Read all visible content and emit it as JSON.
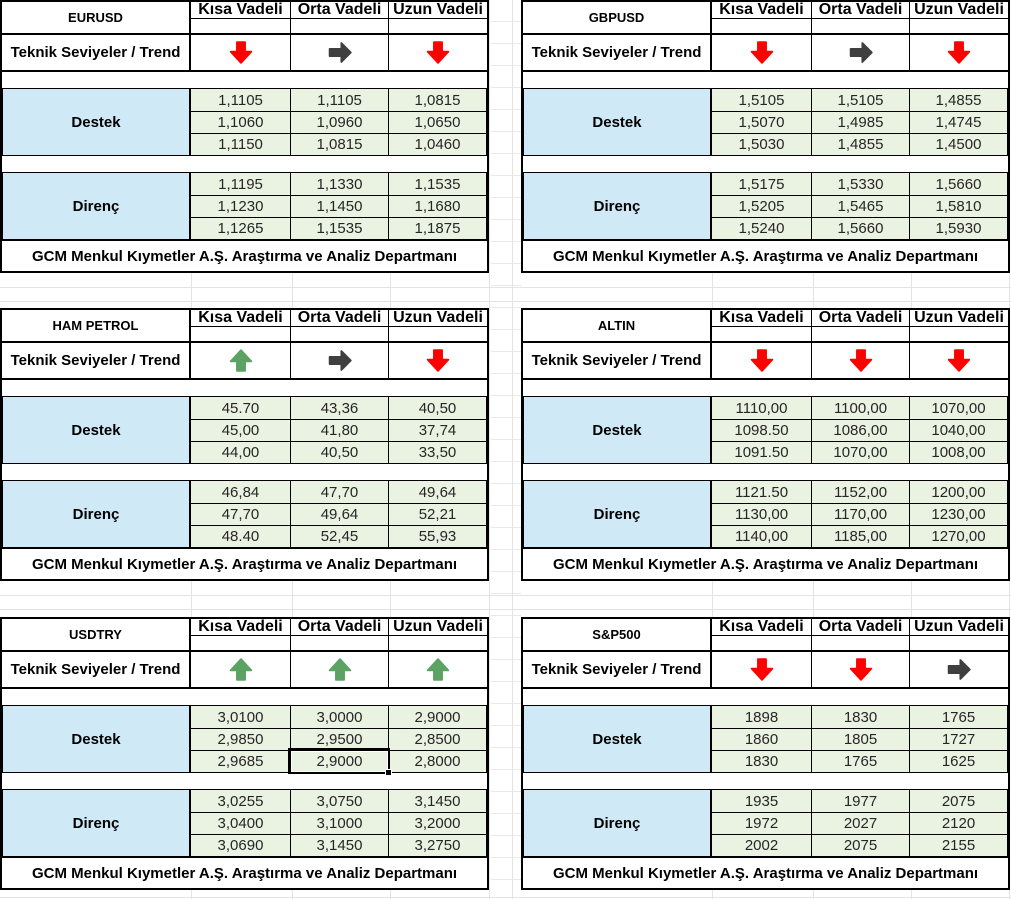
{
  "labels": {
    "columns": [
      "Kısa Vadeli",
      "Orta Vadeli",
      "Uzun Vadeli"
    ],
    "trend_row": "Teknik Seviyeler / Trend",
    "support": "Destek",
    "resistance": "Direnç",
    "footer": "GCM Menkul Kıymetler A.Ş. Araştırma ve Analiz Departmanı"
  },
  "colors": {
    "trend_up": "#5BA263",
    "trend_down": "#FE0000",
    "trend_flat": "#3F3F3F",
    "label_fill": "#CFE9F7",
    "value_fill": "#EAF2E2",
    "table_border": "#000000"
  },
  "tables": [
    {
      "name": "EURUSD",
      "trends": [
        "down",
        "flat",
        "down"
      ],
      "support": [
        [
          "1,1105",
          "1,1105",
          "1,0815"
        ],
        [
          "1,1060",
          "1,0960",
          "1,0650"
        ],
        [
          "1,1150",
          "1,0815",
          "1,0460"
        ]
      ],
      "resistance": [
        [
          "1,1195",
          "1,1330",
          "1,1535"
        ],
        [
          "1,1230",
          "1,1450",
          "1,1680"
        ],
        [
          "1,1265",
          "1,1535",
          "1,1875"
        ]
      ]
    },
    {
      "name": "GBPUSD",
      "trends": [
        "down",
        "flat",
        "down"
      ],
      "support": [
        [
          "1,5105",
          "1,5105",
          "1,4855"
        ],
        [
          "1,5070",
          "1,4985",
          "1,4745"
        ],
        [
          "1,5030",
          "1,4855",
          "1,4500"
        ]
      ],
      "resistance": [
        [
          "1,5175",
          "1,5330",
          "1,5660"
        ],
        [
          "1,5205",
          "1,5465",
          "1,5810"
        ],
        [
          "1,5240",
          "1,5660",
          "1,5930"
        ]
      ]
    },
    {
      "name": "HAM PETROL",
      "trends": [
        "up",
        "flat",
        "down"
      ],
      "support": [
        [
          "45.70",
          "43,36",
          "40,50"
        ],
        [
          "45,00",
          "41,80",
          "37,74"
        ],
        [
          "44,00",
          "40,50",
          "33,50"
        ]
      ],
      "resistance": [
        [
          "46,84",
          "47,70",
          "49,64"
        ],
        [
          "47,70",
          "49,64",
          "52,21"
        ],
        [
          "48.40",
          "52,45",
          "55,93"
        ]
      ]
    },
    {
      "name": "ALTIN",
      "trends": [
        "down",
        "down",
        "down"
      ],
      "support": [
        [
          "1110,00",
          "1100,00",
          "1070,00"
        ],
        [
          "1098.50",
          "1086,00",
          "1040,00"
        ],
        [
          "1091.50",
          "1070,00",
          "1008,00"
        ]
      ],
      "resistance": [
        [
          "1121.50",
          "1152,00",
          "1200,00"
        ],
        [
          "1130,00",
          "1170,00",
          "1230,00"
        ],
        [
          "1140,00",
          "1185,00",
          "1270,00"
        ]
      ]
    },
    {
      "name": "USDTRY",
      "trends": [
        "up",
        "up",
        "up"
      ],
      "support": [
        [
          "3,0100",
          "3,0000",
          "2,9000"
        ],
        [
          "2,9850",
          "2,9500",
          "2,8500"
        ],
        [
          "2,9685",
          "2,9000",
          "2,8000"
        ]
      ],
      "resistance": [
        [
          "3,0255",
          "3,0750",
          "3,1450"
        ],
        [
          "3,0400",
          "3,1000",
          "3,2000"
        ],
        [
          "3,0690",
          "3,1450",
          "3,2750"
        ]
      ]
    },
    {
      "name": "S&P500",
      "trends": [
        "down",
        "down",
        "flat"
      ],
      "support": [
        [
          "1898",
          "1830",
          "1765"
        ],
        [
          "1860",
          "1805",
          "1727"
        ],
        [
          "1830",
          "1765",
          "1625"
        ]
      ],
      "resistance": [
        [
          "1935",
          "1977",
          "2075"
        ],
        [
          "1972",
          "2027",
          "2120"
        ],
        [
          "2002",
          "2075",
          "2155"
        ]
      ]
    }
  ],
  "selection": {
    "table": "USDTRY",
    "section": "support",
    "row": 2,
    "col": 1
  }
}
